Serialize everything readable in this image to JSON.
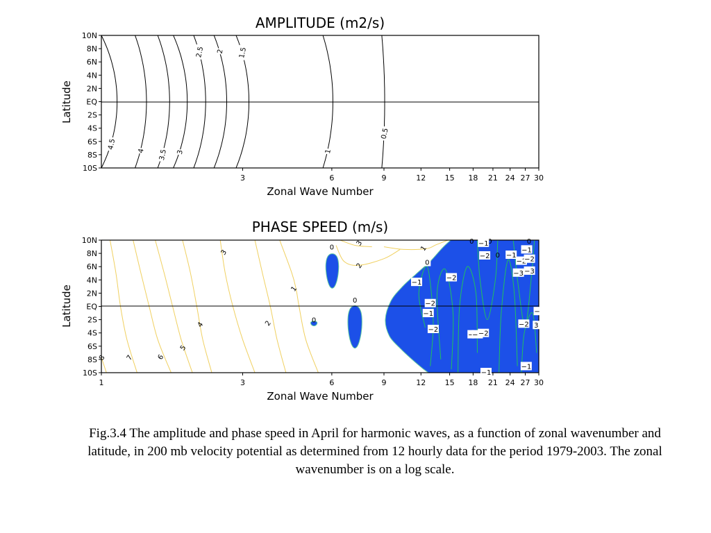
{
  "chart_data": [
    {
      "type": "contour",
      "title": "AMPLITUDE (m2/s)",
      "xlabel": "Zonal Wave Number",
      "ylabel": "Latitude",
      "x_scale": "log",
      "xlim": [
        1,
        30
      ],
      "ylim": [
        -10,
        10
      ],
      "x_ticks": [
        {
          "value": 3,
          "label": "3"
        },
        {
          "value": 6,
          "label": "6"
        },
        {
          "value": 9,
          "label": "9"
        },
        {
          "value": 12,
          "label": "12"
        },
        {
          "value": 15,
          "label": "15"
        },
        {
          "value": 18,
          "label": "18"
        },
        {
          "value": 21,
          "label": "21"
        },
        {
          "value": 24,
          "label": "24"
        },
        {
          "value": 27,
          "label": "27"
        },
        {
          "value": 30,
          "label": "30"
        }
      ],
      "y_ticks": [
        {
          "value": 10,
          "label": "10N"
        },
        {
          "value": 8,
          "label": "8N"
        },
        {
          "value": 6,
          "label": "6N"
        },
        {
          "value": 4,
          "label": "4N"
        },
        {
          "value": 2,
          "label": "2N"
        },
        {
          "value": 0,
          "label": "EQ"
        },
        {
          "value": -2,
          "label": "2S"
        },
        {
          "value": -4,
          "label": "4S"
        },
        {
          "value": -6,
          "label": "6S"
        },
        {
          "value": -8,
          "label": "8S"
        },
        {
          "value": -10,
          "label": "10S"
        }
      ],
      "equator_line": true,
      "line_color": "#000000",
      "contours": [
        {
          "level": 4.5,
          "label": "4.5",
          "x_edge": 1.0,
          "x_center": 1.13,
          "label_at": -6.4
        },
        {
          "level": 4,
          "label": "4",
          "x_edge": 1.3,
          "x_center": 1.42,
          "label_at": -7.4
        },
        {
          "level": 3.5,
          "label": "3.5",
          "x_edge": 1.55,
          "x_center": 1.7,
          "label_at": -8.0
        },
        {
          "level": 3,
          "label": "3",
          "x_edge": 1.75,
          "x_center": 1.95,
          "label_at": -7.6
        },
        {
          "level": 2.5,
          "label": "2.5",
          "x_edge": 2.05,
          "x_center": 2.25,
          "label_at": 7.5
        },
        {
          "level": 2,
          "label": "2",
          "x_edge": 2.4,
          "x_center": 2.65,
          "label_at": 7.6
        },
        {
          "level": 1.5,
          "label": "1.5",
          "x_edge": 2.85,
          "x_center": 3.15,
          "label_at": 7.4
        },
        {
          "level": 1,
          "label": "1",
          "x_edge": 5.6,
          "x_center": 6.05,
          "label_at": -7.5
        },
        {
          "level": 0.5,
          "label": "0.5",
          "x_edge": 8.85,
          "x_center": 9.05,
          "label_at": -4.8
        }
      ]
    },
    {
      "type": "contour-filled",
      "title": "PHASE SPEED (m/s)",
      "xlabel": "Zonal Wave Number",
      "ylabel": "Latitude",
      "x_scale": "log",
      "xlim": [
        1,
        30
      ],
      "ylim": [
        -10,
        10
      ],
      "x_ticks": [
        {
          "value": 1,
          "label": "1"
        },
        {
          "value": 3,
          "label": "3"
        },
        {
          "value": 6,
          "label": "6"
        },
        {
          "value": 9,
          "label": "9"
        },
        {
          "value": 12,
          "label": "12"
        },
        {
          "value": 15,
          "label": "15"
        },
        {
          "value": 18,
          "label": "18"
        },
        {
          "value": 21,
          "label": "21"
        },
        {
          "value": 24,
          "label": "24"
        },
        {
          "value": 27,
          "label": "27"
        },
        {
          "value": 30,
          "label": "30"
        }
      ],
      "y_ticks": [
        {
          "value": 10,
          "label": "10N"
        },
        {
          "value": 8,
          "label": "8N"
        },
        {
          "value": 6,
          "label": "6N"
        },
        {
          "value": 4,
          "label": "4N"
        },
        {
          "value": 2,
          "label": "2N"
        },
        {
          "value": 0,
          "label": "EQ"
        },
        {
          "value": -2,
          "label": "2S"
        },
        {
          "value": -4,
          "label": "4S"
        },
        {
          "value": -6,
          "label": "6S"
        },
        {
          "value": -8,
          "label": "8S"
        },
        {
          "value": -10,
          "label": "10S"
        }
      ],
      "equator_line": true,
      "colors": {
        "positive_contour": "#f0d060",
        "negative_contour": "#20c060",
        "negative_fill": "#1c50e8",
        "fill_edge": "#60c8a0"
      },
      "positive_contours": [
        {
          "level": 8,
          "label": "8",
          "points": [
            [
              1.0,
              -7.7
            ],
            [
              1.04,
              -10.0
            ]
          ],
          "label_at": [
            1.0,
            -7.7
          ]
        },
        {
          "level": 7,
          "label": "7",
          "points": [
            [
              1.07,
              10.0
            ],
            [
              1.12,
              5.0
            ],
            [
              1.16,
              0.0
            ],
            [
              1.22,
              -5.0
            ],
            [
              1.32,
              -10.0
            ]
          ],
          "label_at": [
            1.24,
            -7.7
          ]
        },
        {
          "level": 6,
          "label": "6",
          "points": [
            [
              1.28,
              10.0
            ],
            [
              1.36,
              5.0
            ],
            [
              1.45,
              0.0
            ],
            [
              1.55,
              -5.0
            ],
            [
              1.72,
              -10.0
            ]
          ],
          "label_at": [
            1.58,
            -7.6
          ]
        },
        {
          "level": 5,
          "label": "5",
          "points": [
            [
              1.52,
              10.0
            ],
            [
              1.63,
              5.0
            ],
            [
              1.74,
              0.0
            ],
            [
              1.86,
              -5.0
            ],
            [
              2.03,
              -10.0
            ]
          ],
          "label_at": [
            1.88,
            -6.2
          ]
        },
        {
          "level": 4,
          "label": "4",
          "points": [
            [
              1.88,
              10.0
            ],
            [
              2.0,
              5.0
            ],
            [
              2.1,
              0.0
            ],
            [
              2.2,
              -5.0
            ],
            [
              2.36,
              -10.0
            ]
          ],
          "label_at": [
            2.15,
            -2.7
          ]
        },
        {
          "level": 3,
          "label": "3",
          "points": [
            [
              2.52,
              10.0
            ],
            [
              2.62,
              5.0
            ],
            [
              2.78,
              0.0
            ],
            [
              3.0,
              -5.0
            ],
            [
              3.3,
              -10.0
            ]
          ],
          "label_at": [
            2.58,
            8.2
          ]
        },
        {
          "level": 2,
          "label": "2",
          "points": [
            [
              3.3,
              10.0
            ],
            [
              3.5,
              5.0
            ],
            [
              3.72,
              0.0
            ],
            [
              3.92,
              -5.0
            ],
            [
              4.2,
              -10.0
            ]
          ],
          "label_at": [
            3.64,
            -2.5
          ]
        },
        {
          "level": 1,
          "label": "1",
          "points": [
            [
              4.0,
              10.0
            ],
            [
              4.4,
              5.0
            ],
            [
              4.55,
              2.5
            ],
            [
              4.65,
              0.0
            ],
            [
              4.9,
              -5.0
            ],
            [
              5.4,
              -10.0
            ]
          ],
          "label_at": [
            4.45,
            2.7
          ]
        },
        {
          "level": 3,
          "label": "3",
          "points": [
            [
              6.4,
              10.0
            ],
            [
              7.2,
              9.2
            ],
            [
              8.2,
              9.0
            ]
          ],
          "label_at": [
            7.4,
            9.6
          ]
        },
        {
          "level": 2,
          "label": "2",
          "points": [
            [
              6.2,
              9.2
            ],
            [
              6.6,
              6.8
            ],
            [
              7.4,
              6.2
            ],
            [
              9.0,
              7.2
            ],
            [
              10.2,
              8.6
            ]
          ],
          "label_at": [
            7.4,
            6.2
          ]
        },
        {
          "level": 1,
          "label": "1",
          "points": [
            [
              9.0,
              9.0
            ],
            [
              10.5,
              8.6
            ],
            [
              12.5,
              8.7
            ],
            [
              13.5,
              9.3
            ],
            [
              14.8,
              10.0
            ]
          ],
          "label_at": [
            12.2,
            8.8
          ]
        }
      ],
      "zero_label_points": [
        [
          6.0,
          9.0
        ],
        [
          7.18,
          1.0
        ],
        [
          5.22,
          -2.0
        ],
        [
          12.6,
          6.7
        ],
        [
          17.8,
          9.9
        ],
        [
          20.5,
          9.9
        ],
        [
          21.8,
          7.8
        ],
        [
          27.8,
          9.9
        ]
      ],
      "negative_contours": [
        {
          "points": [
            [
              12.4,
              -3.2
            ],
            [
              11.8,
              2.0
            ],
            [
              12.6,
              6.0
            ],
            [
              13.2,
              -2.0
            ],
            [
              12.9,
              -9.0
            ]
          ]
        },
        {
          "points": [
            [
              14.0,
              -8.0
            ],
            [
              13.6,
              2.0
            ],
            [
              14.5,
              5.6
            ],
            [
              15.4,
              -1.0
            ],
            [
              15.2,
              -9.5
            ]
          ]
        },
        {
          "points": [
            [
              16.0,
              -10.0
            ],
            [
              16.2,
              0.0
            ],
            [
              17.2,
              6.0
            ],
            [
              18.4,
              2.0
            ],
            [
              18.6,
              -7.0
            ]
          ]
        },
        {
          "points": [
            [
              18.6,
              10.0
            ],
            [
              19.0,
              4.0
            ],
            [
              20.1,
              -2.0
            ],
            [
              21.4,
              4.0
            ],
            [
              21.8,
              10.0
            ]
          ]
        },
        {
          "points": [
            [
              22.0,
              -10.0
            ],
            [
              22.4,
              -1.0
            ],
            [
              23.6,
              7.0
            ],
            [
              24.8,
              2.0
            ],
            [
              25.4,
              -9.0
            ]
          ]
        },
        {
          "points": [
            [
              24.6,
              10.0
            ],
            [
              25.6,
              3.0
            ],
            [
              27.0,
              -3.0
            ],
            [
              28.4,
              5.0
            ],
            [
              29.0,
              10.0
            ]
          ]
        },
        {
          "points": [
            [
              26.2,
              -10.0
            ],
            [
              26.8,
              -4.0
            ],
            [
              28.6,
              -1.0
            ],
            [
              29.5,
              -7.0
            ]
          ]
        }
      ],
      "negative_labels": [
        {
          "label": "0",
          "at": [
            12.6,
            6.7
          ]
        },
        {
          "label": "−1",
          "at": [
            11.6,
            3.7
          ]
        },
        {
          "label": "−2",
          "at": [
            12.9,
            0.5
          ]
        },
        {
          "label": "−1",
          "at": [
            12.7,
            -1.0
          ]
        },
        {
          "label": "−2",
          "at": [
            13.2,
            -3.4
          ]
        },
        {
          "label": "−2",
          "at": [
            15.2,
            4.4
          ]
        },
        {
          "label": "−1",
          "at": [
            19.5,
            9.6
          ]
        },
        {
          "label": "−2",
          "at": [
            19.7,
            7.7
          ]
        },
        {
          "label": "−",
          "at": [
            17.7,
            -4.2
          ]
        },
        {
          "label": "−1",
          "at": [
            18.6,
            -4.2
          ]
        },
        {
          "label": "−2",
          "at": [
            19.5,
            -4.0
          ]
        },
        {
          "label": "−1",
          "at": [
            19.9,
            -9.9
          ]
        },
        {
          "label": "−1",
          "at": [
            24.2,
            7.8
          ]
        },
        {
          "label": "−1",
          "at": [
            27.3,
            8.6
          ]
        },
        {
          "label": "−2",
          "at": [
            26.2,
            6.9
          ]
        },
        {
          "label": "−2",
          "at": [
            27.9,
            7.2
          ]
        },
        {
          "label": "−3",
          "at": [
            25.6,
            5.1
          ]
        },
        {
          "label": "−3",
          "at": [
            27.9,
            5.4
          ]
        },
        {
          "label": "−",
          "at": [
            29.6,
            -0.7
          ]
        },
        {
          "label": "−2",
          "at": [
            26.7,
            -2.6
          ]
        },
        {
          "label": "3",
          "at": [
            29.4,
            -2.8
          ]
        },
        {
          "label": "−1",
          "at": [
            27.2,
            -9.0
          ]
        }
      ]
    }
  ],
  "caption": "Fig.3.4 The amplitude and phase speed in April for harmonic waves, as a function of zonal wavenumber and latitude, in 200 mb velocity potential as determined from 12 hourly data for the period 1979-2003. The zonal wavenumber is on a log scale."
}
